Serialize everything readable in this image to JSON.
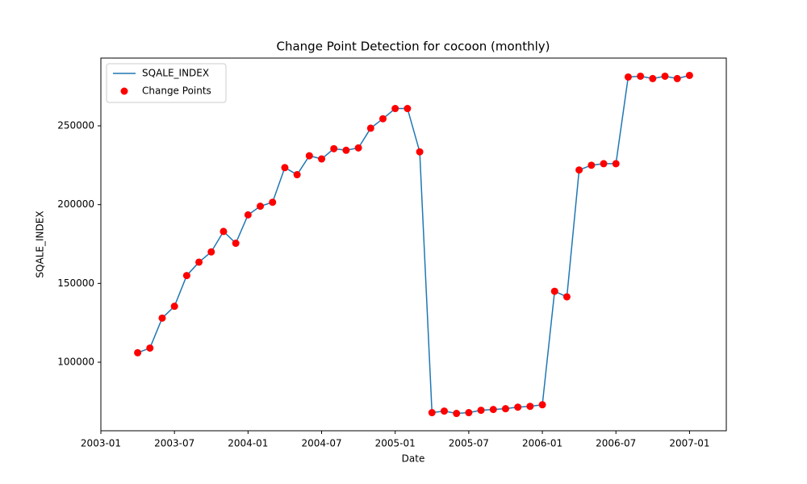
{
  "chart_data": {
    "type": "line",
    "title": "Change Point Detection for cocoon (monthly)",
    "x_label": "Date",
    "y_label": "SQALE_INDEX",
    "x": [
      "2003-04",
      "2003-05",
      "2003-06",
      "2003-07",
      "2003-08",
      "2003-09",
      "2003-10",
      "2003-11",
      "2003-12",
      "2004-01",
      "2004-02",
      "2004-03",
      "2004-04",
      "2004-05",
      "2004-06",
      "2004-07",
      "2004-08",
      "2004-09",
      "2004-10",
      "2004-11",
      "2004-12",
      "2005-01",
      "2005-02",
      "2005-03",
      "2005-04",
      "2005-05",
      "2005-06",
      "2005-07",
      "2005-08",
      "2005-09",
      "2005-10",
      "2005-11",
      "2005-12",
      "2006-01",
      "2006-02",
      "2006-03",
      "2006-04",
      "2006-05",
      "2006-06",
      "2006-07",
      "2006-08",
      "2006-09",
      "2006-10",
      "2006-11",
      "2006-12",
      "2007-01"
    ],
    "series": [
      {
        "name": "SQALE_INDEX",
        "type": "line",
        "color": "#1f77b4",
        "values": [
          106000,
          109000,
          128000,
          135500,
          155000,
          163500,
          170000,
          183000,
          175500,
          193500,
          199000,
          201500,
          223500,
          219000,
          231000,
          229000,
          235500,
          234500,
          236000,
          248500,
          254500,
          261000,
          261000,
          233500,
          68000,
          69000,
          67500,
          68000,
          69500,
          70000,
          70500,
          71500,
          72000,
          73000,
          145000,
          141500,
          222000,
          225000,
          226000,
          226000,
          281000,
          281500,
          280000,
          281500,
          280000,
          282000
        ]
      },
      {
        "name": "Change Points",
        "type": "scatter",
        "color": "#ff0000",
        "values": [
          106000,
          109000,
          128000,
          135500,
          155000,
          163500,
          170000,
          183000,
          175500,
          193500,
          199000,
          201500,
          223500,
          219000,
          231000,
          229000,
          235500,
          234500,
          236000,
          248500,
          254500,
          261000,
          261000,
          233500,
          68000,
          69000,
          67500,
          68000,
          69500,
          70000,
          70500,
          71500,
          72000,
          73000,
          145000,
          141500,
          222000,
          225000,
          226000,
          226000,
          281000,
          281500,
          280000,
          281500,
          280000,
          282000
        ]
      }
    ],
    "xlim": [
      "2003-01",
      "2007-04"
    ],
    "xticks": [
      "2003-01",
      "2003-07",
      "2004-01",
      "2004-07",
      "2005-01",
      "2005-07",
      "2006-01",
      "2006-07",
      "2007-01"
    ],
    "ylim": [
      56500,
      293000
    ],
    "yticks": [
      100000,
      150000,
      200000,
      250000
    ],
    "legend": "upper left",
    "grid": false
  }
}
